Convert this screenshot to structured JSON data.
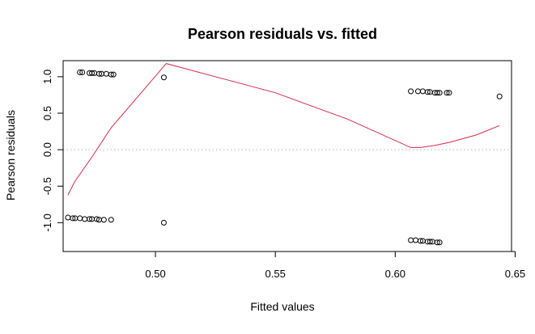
{
  "chart_data": {
    "type": "scatter",
    "title": "Pearson residuals vs. fitted",
    "xlabel": "Fitted values",
    "ylabel": "Pearson residuals",
    "xlim": [
      0.4615,
      0.6485
    ],
    "ylim": [
      -1.395,
      1.22
    ],
    "x_ticks": [
      0.5,
      0.55,
      0.6,
      0.65
    ],
    "x_tick_labels": [
      "0.50",
      "0.55",
      "0.60",
      "0.65"
    ],
    "y_ticks": [
      -1.0,
      -0.5,
      0.0,
      0.5,
      1.0
    ],
    "y_tick_labels": [
      "-1.0",
      "-0.5",
      "0.0",
      "0.5",
      "1.0"
    ],
    "grid": false,
    "reference_line": {
      "y": 0,
      "style": "dotted",
      "color": "#b0b0b0"
    },
    "point_style": "open-circle",
    "points": [
      {
        "x": 0.4685,
        "y": 1.06
      },
      {
        "x": 0.4695,
        "y": 1.06
      },
      {
        "x": 0.4725,
        "y": 1.05
      },
      {
        "x": 0.4735,
        "y": 1.05
      },
      {
        "x": 0.4745,
        "y": 1.05
      },
      {
        "x": 0.4765,
        "y": 1.04
      },
      {
        "x": 0.4775,
        "y": 1.04
      },
      {
        "x": 0.4795,
        "y": 1.04
      },
      {
        "x": 0.4815,
        "y": 1.03
      },
      {
        "x": 0.4825,
        "y": 1.03
      },
      {
        "x": 0.5035,
        "y": 0.99
      },
      {
        "x": 0.4635,
        "y": -0.93
      },
      {
        "x": 0.4655,
        "y": -0.94
      },
      {
        "x": 0.4665,
        "y": -0.94
      },
      {
        "x": 0.4685,
        "y": -0.94
      },
      {
        "x": 0.4705,
        "y": -0.95
      },
      {
        "x": 0.4725,
        "y": -0.95
      },
      {
        "x": 0.4735,
        "y": -0.95
      },
      {
        "x": 0.4755,
        "y": -0.95
      },
      {
        "x": 0.4765,
        "y": -0.96
      },
      {
        "x": 0.4785,
        "y": -0.96
      },
      {
        "x": 0.4815,
        "y": -0.96
      },
      {
        "x": 0.5035,
        "y": -1.0
      },
      {
        "x": 0.6065,
        "y": 0.8
      },
      {
        "x": 0.6095,
        "y": 0.8
      },
      {
        "x": 0.6115,
        "y": 0.8
      },
      {
        "x": 0.6135,
        "y": 0.79
      },
      {
        "x": 0.6145,
        "y": 0.79
      },
      {
        "x": 0.6165,
        "y": 0.78
      },
      {
        "x": 0.6175,
        "y": 0.78
      },
      {
        "x": 0.6185,
        "y": 0.78
      },
      {
        "x": 0.6215,
        "y": 0.78
      },
      {
        "x": 0.6225,
        "y": 0.78
      },
      {
        "x": 0.6435,
        "y": 0.73
      },
      {
        "x": 0.6065,
        "y": -1.24
      },
      {
        "x": 0.6085,
        "y": -1.24
      },
      {
        "x": 0.6105,
        "y": -1.25
      },
      {
        "x": 0.6115,
        "y": -1.25
      },
      {
        "x": 0.6135,
        "y": -1.26
      },
      {
        "x": 0.6145,
        "y": -1.26
      },
      {
        "x": 0.6155,
        "y": -1.26
      },
      {
        "x": 0.6175,
        "y": -1.27
      },
      {
        "x": 0.6185,
        "y": -1.27
      }
    ],
    "smooth_line": {
      "color": "#d62a4a",
      "points": [
        {
          "x": 0.4635,
          "y": -0.62
        },
        {
          "x": 0.4665,
          "y": -0.43
        },
        {
          "x": 0.4735,
          "y": -0.1
        },
        {
          "x": 0.4815,
          "y": 0.3
        },
        {
          "x": 0.4925,
          "y": 0.72
        },
        {
          "x": 0.5045,
          "y": 1.18
        },
        {
          "x": 0.55,
          "y": 0.78
        },
        {
          "x": 0.58,
          "y": 0.42
        },
        {
          "x": 0.6065,
          "y": 0.03
        },
        {
          "x": 0.6105,
          "y": 0.03
        },
        {
          "x": 0.6165,
          "y": 0.06
        },
        {
          "x": 0.6225,
          "y": 0.1
        },
        {
          "x": 0.6335,
          "y": 0.2
        },
        {
          "x": 0.6435,
          "y": 0.33
        }
      ]
    }
  }
}
